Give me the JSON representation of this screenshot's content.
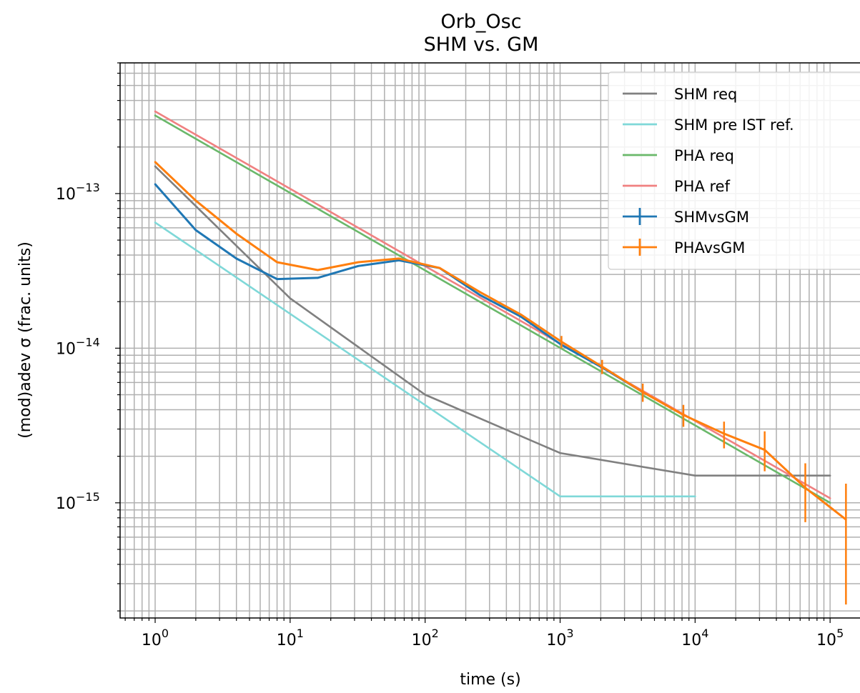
{
  "chart_data": {
    "type": "line",
    "title": "Orb_Osc",
    "subtitle": "SHM vs. GM",
    "xlabel": "time (s)",
    "ylabel": "(mod)adev σ (frac. units)",
    "x_scale": "log",
    "y_scale": "log",
    "xlim": [
      0.55,
      200000
    ],
    "ylim": [
      1.8e-16,
      7e-13
    ],
    "x_ticks": [
      {
        "value": 1,
        "base": "10",
        "exp": "0"
      },
      {
        "value": 10,
        "base": "10",
        "exp": "1"
      },
      {
        "value": 100,
        "base": "10",
        "exp": "2"
      },
      {
        "value": 1000,
        "base": "10",
        "exp": "3"
      },
      {
        "value": 10000,
        "base": "10",
        "exp": "4"
      },
      {
        "value": 100000,
        "base": "10",
        "exp": "5"
      }
    ],
    "y_ticks": [
      {
        "value": 1e-13,
        "base": "10",
        "exp": "−13"
      },
      {
        "value": 1e-14,
        "base": "10",
        "exp": "−14"
      },
      {
        "value": 1e-15,
        "base": "10",
        "exp": "−15"
      }
    ],
    "grid": true,
    "legend_position": "top-right",
    "series": [
      {
        "name": "SHM req",
        "color": "#808080",
        "errorbars": false,
        "points": [
          [
            1,
            1.5e-13
          ],
          [
            10,
            2.1e-14
          ],
          [
            100,
            5e-15
          ],
          [
            1000,
            2.1e-15
          ],
          [
            10000,
            1.5e-15
          ],
          [
            100000,
            1.5e-15
          ]
        ]
      },
      {
        "name": "SHM pre IST ref.",
        "color": "#7fd8d8",
        "errorbars": false,
        "points": [
          [
            1,
            6.5e-14
          ],
          [
            1000,
            1.1e-15
          ],
          [
            10000,
            1.1e-15
          ]
        ]
      },
      {
        "name": "PHA req",
        "color": "#6ab86a",
        "errorbars": false,
        "points": [
          [
            1,
            3.2e-13
          ],
          [
            100000,
            1e-15
          ]
        ]
      },
      {
        "name": "PHA ref",
        "color": "#f08080",
        "errorbars": false,
        "points": [
          [
            1,
            3.4e-13
          ],
          [
            100000,
            1.07e-15
          ]
        ]
      },
      {
        "name": "SHMvsGM",
        "color": "#1f77b4",
        "errorbars": true,
        "points": [
          [
            1,
            1.15e-13
          ],
          [
            2,
            5.8e-14
          ],
          [
            4,
            3.8e-14
          ],
          [
            8,
            2.8e-14
          ],
          [
            16,
            2.85e-14
          ],
          [
            32,
            3.4e-14
          ],
          [
            64,
            3.7e-14
          ],
          [
            128,
            3.3e-14
          ],
          [
            256,
            2.2e-14
          ],
          [
            512,
            1.6e-14
          ],
          [
            1024,
            1.05e-14
          ],
          [
            2048,
            7.5e-15
          ],
          [
            4096,
            5.2e-15
          ]
        ]
      },
      {
        "name": "PHAvsGM",
        "color": "#ff7f0e",
        "errorbars": true,
        "points": [
          [
            1,
            1.6e-13
          ],
          [
            2,
            9e-14
          ],
          [
            4,
            5.5e-14
          ],
          [
            8,
            3.6e-14
          ],
          [
            16,
            3.2e-14
          ],
          [
            32,
            3.6e-14
          ],
          [
            64,
            3.8e-14
          ],
          [
            128,
            3.3e-14
          ],
          [
            256,
            2.3e-14
          ],
          [
            512,
            1.65e-14
          ],
          [
            1024,
            1.1e-14
          ],
          [
            2048,
            7.6e-15
          ],
          [
            4096,
            5.2e-15
          ],
          [
            8192,
            3.7e-15
          ],
          [
            16384,
            2.8e-15
          ],
          [
            32768,
            2.2e-15
          ],
          [
            65536,
            1.25e-15
          ],
          [
            131072,
            7.8e-16
          ]
        ],
        "errors": [
          [
            0,
            0
          ],
          [
            0,
            0
          ],
          [
            0,
            0
          ],
          [
            0,
            0
          ],
          [
            0,
            0
          ],
          [
            0,
            0
          ],
          [
            0,
            0
          ],
          [
            0,
            0
          ],
          [
            0,
            0
          ],
          [
            0,
            0
          ],
          [
            1e-15,
            1e-15
          ],
          [
            8e-16,
            8e-16
          ],
          [
            7e-16,
            7e-16
          ],
          [
            6e-16,
            6e-16
          ],
          [
            5.5e-16,
            5.5e-16
          ],
          [
            6e-16,
            7e-16
          ],
          [
            5e-16,
            5.5e-16
          ],
          [
            5.6e-16,
            5.5e-16
          ]
        ]
      }
    ]
  }
}
